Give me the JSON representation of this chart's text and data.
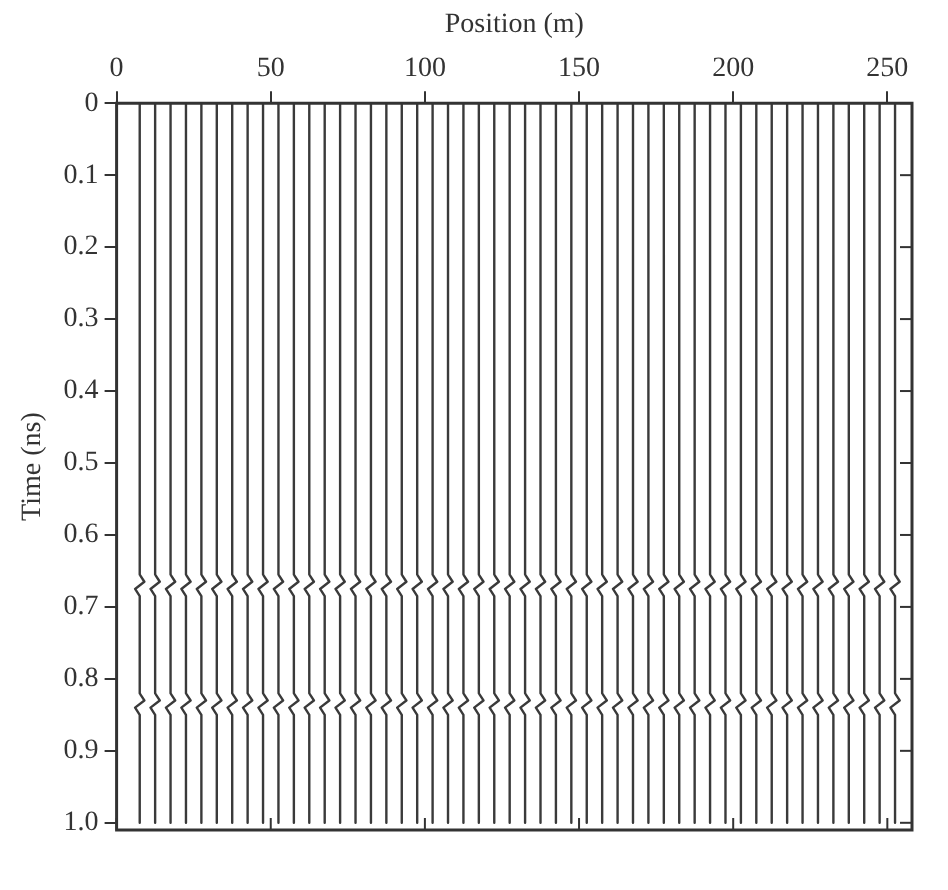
{
  "chart_data": {
    "type": "line",
    "xlabel": "Position (m)",
    "ylabel": "Time (ns)",
    "xlim": [
      0,
      258
    ],
    "xticks": [
      0,
      50,
      100,
      150,
      200,
      250
    ],
    "ylim": [
      1.01,
      0
    ],
    "yticks": [
      0,
      0.1,
      0.2,
      0.3,
      0.4,
      0.5,
      0.6,
      0.7,
      0.8,
      0.9,
      {
        "value": 1,
        "label": "1.0"
      }
    ],
    "grid": false,
    "legend": false,
    "marker": "none",
    "line_style": "solid",
    "tick_labels": "xy",
    "series": [
      {
        "color": "#3a3a3a",
        "x": [
          7.5,
          7.5,
          9,
          6,
          7.5,
          7.5,
          9,
          6,
          7.5,
          7.5
        ],
        "values": [
          0,
          0.655,
          0.665,
          0.675,
          0.685,
          0.82,
          0.83,
          0.84,
          0.85,
          1
        ]
      },
      {
        "color": "#3a3a3a",
        "x": [
          12.5,
          12.5,
          14,
          11,
          12.5,
          12.5,
          14,
          11,
          12.5,
          12.5
        ],
        "values": [
          0,
          0.655,
          0.665,
          0.675,
          0.685,
          0.82,
          0.83,
          0.84,
          0.85,
          1
        ]
      },
      {
        "color": "#3a3a3a",
        "x": [
          17.5,
          17.5,
          19,
          16,
          17.5,
          17.5,
          19,
          16,
          17.5,
          17.5
        ],
        "values": [
          0,
          0.655,
          0.665,
          0.675,
          0.685,
          0.82,
          0.83,
          0.84,
          0.85,
          1
        ]
      },
      {
        "color": "#3a3a3a",
        "x": [
          22.5,
          22.5,
          24,
          21,
          22.5,
          22.5,
          24,
          21,
          22.5,
          22.5
        ],
        "values": [
          0,
          0.655,
          0.665,
          0.675,
          0.685,
          0.82,
          0.83,
          0.84,
          0.85,
          1
        ]
      },
      {
        "color": "#3a3a3a",
        "x": [
          27.5,
          27.5,
          29,
          26,
          27.5,
          27.5,
          29,
          26,
          27.5,
          27.5
        ],
        "values": [
          0,
          0.655,
          0.665,
          0.675,
          0.685,
          0.82,
          0.83,
          0.84,
          0.85,
          1
        ]
      },
      {
        "color": "#3a3a3a",
        "x": [
          32.5,
          32.5,
          34,
          31,
          32.5,
          32.5,
          34,
          31,
          32.5,
          32.5
        ],
        "values": [
          0,
          0.655,
          0.665,
          0.675,
          0.685,
          0.82,
          0.83,
          0.84,
          0.85,
          1
        ]
      },
      {
        "color": "#3a3a3a",
        "x": [
          37.5,
          37.5,
          39,
          36,
          37.5,
          37.5,
          39,
          36,
          37.5,
          37.5
        ],
        "values": [
          0,
          0.655,
          0.665,
          0.675,
          0.685,
          0.82,
          0.83,
          0.84,
          0.85,
          1
        ]
      },
      {
        "color": "#3a3a3a",
        "x": [
          42.5,
          42.5,
          44,
          41,
          42.5,
          42.5,
          44,
          41,
          42.5,
          42.5
        ],
        "values": [
          0,
          0.655,
          0.665,
          0.675,
          0.685,
          0.82,
          0.83,
          0.84,
          0.85,
          1
        ]
      },
      {
        "color": "#3a3a3a",
        "x": [
          47.5,
          47.5,
          49,
          46,
          47.5,
          47.5,
          49,
          46,
          47.5,
          47.5
        ],
        "values": [
          0,
          0.655,
          0.665,
          0.675,
          0.685,
          0.82,
          0.83,
          0.84,
          0.85,
          1
        ]
      },
      {
        "color": "#3a3a3a",
        "x": [
          52.5,
          52.5,
          54,
          51,
          52.5,
          52.5,
          54,
          51,
          52.5,
          52.5
        ],
        "values": [
          0,
          0.655,
          0.665,
          0.675,
          0.685,
          0.82,
          0.83,
          0.84,
          0.85,
          1
        ]
      },
      {
        "color": "#3a3a3a",
        "x": [
          57.5,
          57.5,
          59,
          56,
          57.5,
          57.5,
          59,
          56,
          57.5,
          57.5
        ],
        "values": [
          0,
          0.655,
          0.665,
          0.675,
          0.685,
          0.82,
          0.83,
          0.84,
          0.85,
          1
        ]
      },
      {
        "color": "#3a3a3a",
        "x": [
          62.5,
          62.5,
          64,
          61,
          62.5,
          62.5,
          64,
          61,
          62.5,
          62.5
        ],
        "values": [
          0,
          0.655,
          0.665,
          0.675,
          0.685,
          0.82,
          0.83,
          0.84,
          0.85,
          1
        ]
      },
      {
        "color": "#3a3a3a",
        "x": [
          67.5,
          67.5,
          69,
          66,
          67.5,
          67.5,
          69,
          66,
          67.5,
          67.5
        ],
        "values": [
          0,
          0.655,
          0.665,
          0.675,
          0.685,
          0.82,
          0.83,
          0.84,
          0.85,
          1
        ]
      },
      {
        "color": "#3a3a3a",
        "x": [
          72.5,
          72.5,
          74,
          71,
          72.5,
          72.5,
          74,
          71,
          72.5,
          72.5
        ],
        "values": [
          0,
          0.655,
          0.665,
          0.675,
          0.685,
          0.82,
          0.83,
          0.84,
          0.85,
          1
        ]
      },
      {
        "color": "#3a3a3a",
        "x": [
          77.5,
          77.5,
          79,
          76,
          77.5,
          77.5,
          79,
          76,
          77.5,
          77.5
        ],
        "values": [
          0,
          0.655,
          0.665,
          0.675,
          0.685,
          0.82,
          0.83,
          0.84,
          0.85,
          1
        ]
      },
      {
        "color": "#3a3a3a",
        "x": [
          82.5,
          82.5,
          84,
          81,
          82.5,
          82.5,
          84,
          81,
          82.5,
          82.5
        ],
        "values": [
          0,
          0.655,
          0.665,
          0.675,
          0.685,
          0.82,
          0.83,
          0.84,
          0.85,
          1
        ]
      },
      {
        "color": "#3a3a3a",
        "x": [
          87.5,
          87.5,
          89,
          86,
          87.5,
          87.5,
          89,
          86,
          87.5,
          87.5
        ],
        "values": [
          0,
          0.655,
          0.665,
          0.675,
          0.685,
          0.82,
          0.83,
          0.84,
          0.85,
          1
        ]
      },
      {
        "color": "#3a3a3a",
        "x": [
          92.5,
          92.5,
          94,
          91,
          92.5,
          92.5,
          94,
          91,
          92.5,
          92.5
        ],
        "values": [
          0,
          0.655,
          0.665,
          0.675,
          0.685,
          0.82,
          0.83,
          0.84,
          0.85,
          1
        ]
      },
      {
        "color": "#3a3a3a",
        "x": [
          97.5,
          97.5,
          99,
          96,
          97.5,
          97.5,
          99,
          96,
          97.5,
          97.5
        ],
        "values": [
          0,
          0.655,
          0.665,
          0.675,
          0.685,
          0.82,
          0.83,
          0.84,
          0.85,
          1
        ]
      },
      {
        "color": "#3a3a3a",
        "x": [
          102.5,
          102.5,
          104,
          101,
          102.5,
          102.5,
          104,
          101,
          102.5,
          102.5
        ],
        "values": [
          0,
          0.655,
          0.665,
          0.675,
          0.685,
          0.82,
          0.83,
          0.84,
          0.85,
          1
        ]
      },
      {
        "color": "#3a3a3a",
        "x": [
          107.5,
          107.5,
          109,
          106,
          107.5,
          107.5,
          109,
          106,
          107.5,
          107.5
        ],
        "values": [
          0,
          0.655,
          0.665,
          0.675,
          0.685,
          0.82,
          0.83,
          0.84,
          0.85,
          1
        ]
      },
      {
        "color": "#3a3a3a",
        "x": [
          112.5,
          112.5,
          114,
          111,
          112.5,
          112.5,
          114,
          111,
          112.5,
          112.5
        ],
        "values": [
          0,
          0.655,
          0.665,
          0.675,
          0.685,
          0.82,
          0.83,
          0.84,
          0.85,
          1
        ]
      },
      {
        "color": "#3a3a3a",
        "x": [
          117.5,
          117.5,
          119,
          116,
          117.5,
          117.5,
          119,
          116,
          117.5,
          117.5
        ],
        "values": [
          0,
          0.655,
          0.665,
          0.675,
          0.685,
          0.82,
          0.83,
          0.84,
          0.85,
          1
        ]
      },
      {
        "color": "#3a3a3a",
        "x": [
          122.5,
          122.5,
          124,
          121,
          122.5,
          122.5,
          124,
          121,
          122.5,
          122.5
        ],
        "values": [
          0,
          0.655,
          0.665,
          0.675,
          0.685,
          0.82,
          0.83,
          0.84,
          0.85,
          1
        ]
      },
      {
        "color": "#3a3a3a",
        "x": [
          127.5,
          127.5,
          129,
          126,
          127.5,
          127.5,
          129,
          126,
          127.5,
          127.5
        ],
        "values": [
          0,
          0.655,
          0.665,
          0.675,
          0.685,
          0.82,
          0.83,
          0.84,
          0.85,
          1
        ]
      },
      {
        "color": "#3a3a3a",
        "x": [
          132.5,
          132.5,
          134,
          131,
          132.5,
          132.5,
          134,
          131,
          132.5,
          132.5
        ],
        "values": [
          0,
          0.655,
          0.665,
          0.675,
          0.685,
          0.82,
          0.83,
          0.84,
          0.85,
          1
        ]
      },
      {
        "color": "#3a3a3a",
        "x": [
          137.5,
          137.5,
          139,
          136,
          137.5,
          137.5,
          139,
          136,
          137.5,
          137.5
        ],
        "values": [
          0,
          0.655,
          0.665,
          0.675,
          0.685,
          0.82,
          0.83,
          0.84,
          0.85,
          1
        ]
      },
      {
        "color": "#3a3a3a",
        "x": [
          142.5,
          142.5,
          144,
          141,
          142.5,
          142.5,
          144,
          141,
          142.5,
          142.5
        ],
        "values": [
          0,
          0.655,
          0.665,
          0.675,
          0.685,
          0.82,
          0.83,
          0.84,
          0.85,
          1
        ]
      },
      {
        "color": "#3a3a3a",
        "x": [
          147.5,
          147.5,
          149,
          146,
          147.5,
          147.5,
          149,
          146,
          147.5,
          147.5
        ],
        "values": [
          0,
          0.655,
          0.665,
          0.675,
          0.685,
          0.82,
          0.83,
          0.84,
          0.85,
          1
        ]
      },
      {
        "color": "#3a3a3a",
        "x": [
          152.5,
          152.5,
          154,
          151,
          152.5,
          152.5,
          154,
          151,
          152.5,
          152.5
        ],
        "values": [
          0,
          0.655,
          0.665,
          0.675,
          0.685,
          0.82,
          0.83,
          0.84,
          0.85,
          1
        ]
      },
      {
        "color": "#3a3a3a",
        "x": [
          157.5,
          157.5,
          159,
          156,
          157.5,
          157.5,
          159,
          156,
          157.5,
          157.5
        ],
        "values": [
          0,
          0.655,
          0.665,
          0.675,
          0.685,
          0.82,
          0.83,
          0.84,
          0.85,
          1
        ]
      },
      {
        "color": "#3a3a3a",
        "x": [
          162.5,
          162.5,
          164,
          161,
          162.5,
          162.5,
          164,
          161,
          162.5,
          162.5
        ],
        "values": [
          0,
          0.655,
          0.665,
          0.675,
          0.685,
          0.82,
          0.83,
          0.84,
          0.85,
          1
        ]
      },
      {
        "color": "#3a3a3a",
        "x": [
          167.5,
          167.5,
          169,
          166,
          167.5,
          167.5,
          169,
          166,
          167.5,
          167.5
        ],
        "values": [
          0,
          0.655,
          0.665,
          0.675,
          0.685,
          0.82,
          0.83,
          0.84,
          0.85,
          1
        ]
      },
      {
        "color": "#3a3a3a",
        "x": [
          172.5,
          172.5,
          174,
          171,
          172.5,
          172.5,
          174,
          171,
          172.5,
          172.5
        ],
        "values": [
          0,
          0.655,
          0.665,
          0.675,
          0.685,
          0.82,
          0.83,
          0.84,
          0.85,
          1
        ]
      },
      {
        "color": "#3a3a3a",
        "x": [
          177.5,
          177.5,
          179,
          176,
          177.5,
          177.5,
          179,
          176,
          177.5,
          177.5
        ],
        "values": [
          0,
          0.655,
          0.665,
          0.675,
          0.685,
          0.82,
          0.83,
          0.84,
          0.85,
          1
        ]
      },
      {
        "color": "#3a3a3a",
        "x": [
          182.5,
          182.5,
          184,
          181,
          182.5,
          182.5,
          184,
          181,
          182.5,
          182.5
        ],
        "values": [
          0,
          0.655,
          0.665,
          0.675,
          0.685,
          0.82,
          0.83,
          0.84,
          0.85,
          1
        ]
      },
      {
        "color": "#3a3a3a",
        "x": [
          187.5,
          187.5,
          189,
          186,
          187.5,
          187.5,
          189,
          186,
          187.5,
          187.5
        ],
        "values": [
          0,
          0.655,
          0.665,
          0.675,
          0.685,
          0.82,
          0.83,
          0.84,
          0.85,
          1
        ]
      },
      {
        "color": "#3a3a3a",
        "x": [
          192.5,
          192.5,
          194,
          191,
          192.5,
          192.5,
          194,
          191,
          192.5,
          192.5
        ],
        "values": [
          0,
          0.655,
          0.665,
          0.675,
          0.685,
          0.82,
          0.83,
          0.84,
          0.85,
          1
        ]
      },
      {
        "color": "#3a3a3a",
        "x": [
          197.5,
          197.5,
          199,
          196,
          197.5,
          197.5,
          199,
          196,
          197.5,
          197.5
        ],
        "values": [
          0,
          0.655,
          0.665,
          0.675,
          0.685,
          0.82,
          0.83,
          0.84,
          0.85,
          1
        ]
      },
      {
        "color": "#3a3a3a",
        "x": [
          202.5,
          202.5,
          204,
          201,
          202.5,
          202.5,
          204,
          201,
          202.5,
          202.5
        ],
        "values": [
          0,
          0.655,
          0.665,
          0.675,
          0.685,
          0.82,
          0.83,
          0.84,
          0.85,
          1
        ]
      },
      {
        "color": "#3a3a3a",
        "x": [
          207.5,
          207.5,
          209,
          206,
          207.5,
          207.5,
          209,
          206,
          207.5,
          207.5
        ],
        "values": [
          0,
          0.655,
          0.665,
          0.675,
          0.685,
          0.82,
          0.83,
          0.84,
          0.85,
          1
        ]
      },
      {
        "color": "#3a3a3a",
        "x": [
          212.5,
          212.5,
          214,
          211,
          212.5,
          212.5,
          214,
          211,
          212.5,
          212.5
        ],
        "values": [
          0,
          0.655,
          0.665,
          0.675,
          0.685,
          0.82,
          0.83,
          0.84,
          0.85,
          1
        ]
      },
      {
        "color": "#3a3a3a",
        "x": [
          217.5,
          217.5,
          219,
          216,
          217.5,
          217.5,
          219,
          216,
          217.5,
          217.5
        ],
        "values": [
          0,
          0.655,
          0.665,
          0.675,
          0.685,
          0.82,
          0.83,
          0.84,
          0.85,
          1
        ]
      },
      {
        "color": "#3a3a3a",
        "x": [
          222.5,
          222.5,
          224,
          221,
          222.5,
          222.5,
          224,
          221,
          222.5,
          222.5
        ],
        "values": [
          0,
          0.655,
          0.665,
          0.675,
          0.685,
          0.82,
          0.83,
          0.84,
          0.85,
          1
        ]
      },
      {
        "color": "#3a3a3a",
        "x": [
          227.5,
          227.5,
          229,
          226,
          227.5,
          227.5,
          229,
          226,
          227.5,
          227.5
        ],
        "values": [
          0,
          0.655,
          0.665,
          0.675,
          0.685,
          0.82,
          0.83,
          0.84,
          0.85,
          1
        ]
      },
      {
        "color": "#3a3a3a",
        "x": [
          232.5,
          232.5,
          234,
          231,
          232.5,
          232.5,
          234,
          231,
          232.5,
          232.5
        ],
        "values": [
          0,
          0.655,
          0.665,
          0.675,
          0.685,
          0.82,
          0.83,
          0.84,
          0.85,
          1
        ]
      },
      {
        "color": "#3a3a3a",
        "x": [
          237.5,
          237.5,
          239,
          236,
          237.5,
          237.5,
          239,
          236,
          237.5,
          237.5
        ],
        "values": [
          0,
          0.655,
          0.665,
          0.675,
          0.685,
          0.82,
          0.83,
          0.84,
          0.85,
          1
        ]
      },
      {
        "color": "#3a3a3a",
        "x": [
          242.5,
          242.5,
          244,
          241,
          242.5,
          242.5,
          244,
          241,
          242.5,
          242.5
        ],
        "values": [
          0,
          0.655,
          0.665,
          0.675,
          0.685,
          0.82,
          0.83,
          0.84,
          0.85,
          1
        ]
      },
      {
        "color": "#3a3a3a",
        "x": [
          247.5,
          247.5,
          249,
          246,
          247.5,
          247.5,
          249,
          246,
          247.5,
          247.5
        ],
        "values": [
          0,
          0.655,
          0.665,
          0.675,
          0.685,
          0.82,
          0.83,
          0.84,
          0.85,
          1
        ]
      },
      {
        "color": "#3a3a3a",
        "x": [
          252.5,
          252.5,
          254,
          251,
          252.5,
          252.5,
          254,
          251,
          252.5,
          252.5
        ],
        "values": [
          0,
          0.655,
          0.665,
          0.675,
          0.685,
          0.82,
          0.83,
          0.84,
          0.85,
          1
        ]
      }
    ]
  }
}
